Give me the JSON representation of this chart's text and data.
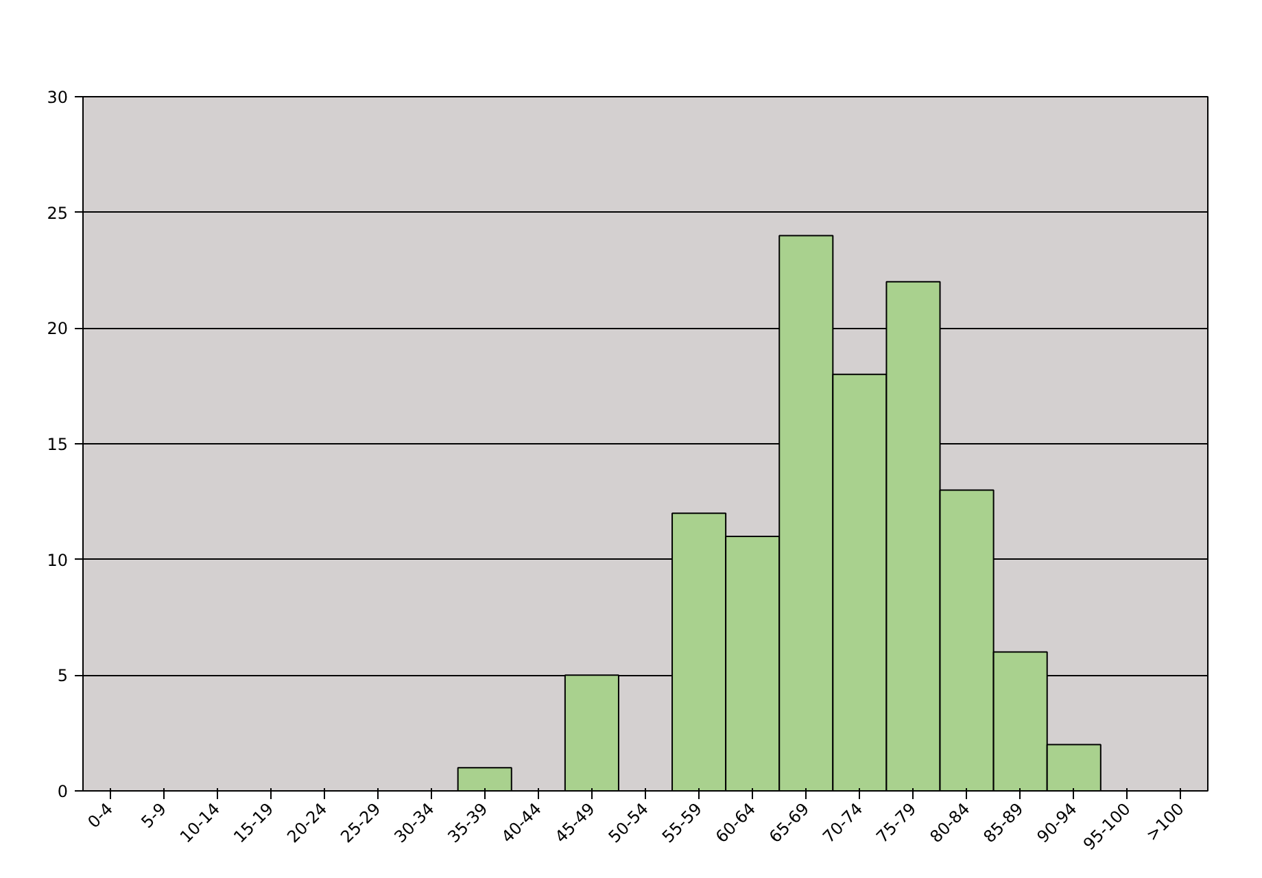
{
  "chart_data": {
    "type": "bar",
    "categories": [
      "0-4",
      "5-9",
      "10-14",
      "15-19",
      "20-24",
      "25-29",
      "30-34",
      "35-39",
      "40-44",
      "45-49",
      "50-54",
      "55-59",
      "60-64",
      "65-69",
      "70-74",
      "75-79",
      "80-84",
      "85-89",
      "90-94",
      "95-100",
      ">100"
    ],
    "values": [
      0,
      0,
      0,
      0,
      0,
      0,
      0,
      1,
      0,
      5,
      0,
      12,
      11,
      24,
      18,
      22,
      13,
      6,
      2,
      0,
      0
    ],
    "color": "#a9d18e",
    "ylim": [
      0,
      30
    ],
    "yticks": [
      0,
      5,
      10,
      15,
      20,
      25,
      30
    ],
    "grid": "y"
  }
}
